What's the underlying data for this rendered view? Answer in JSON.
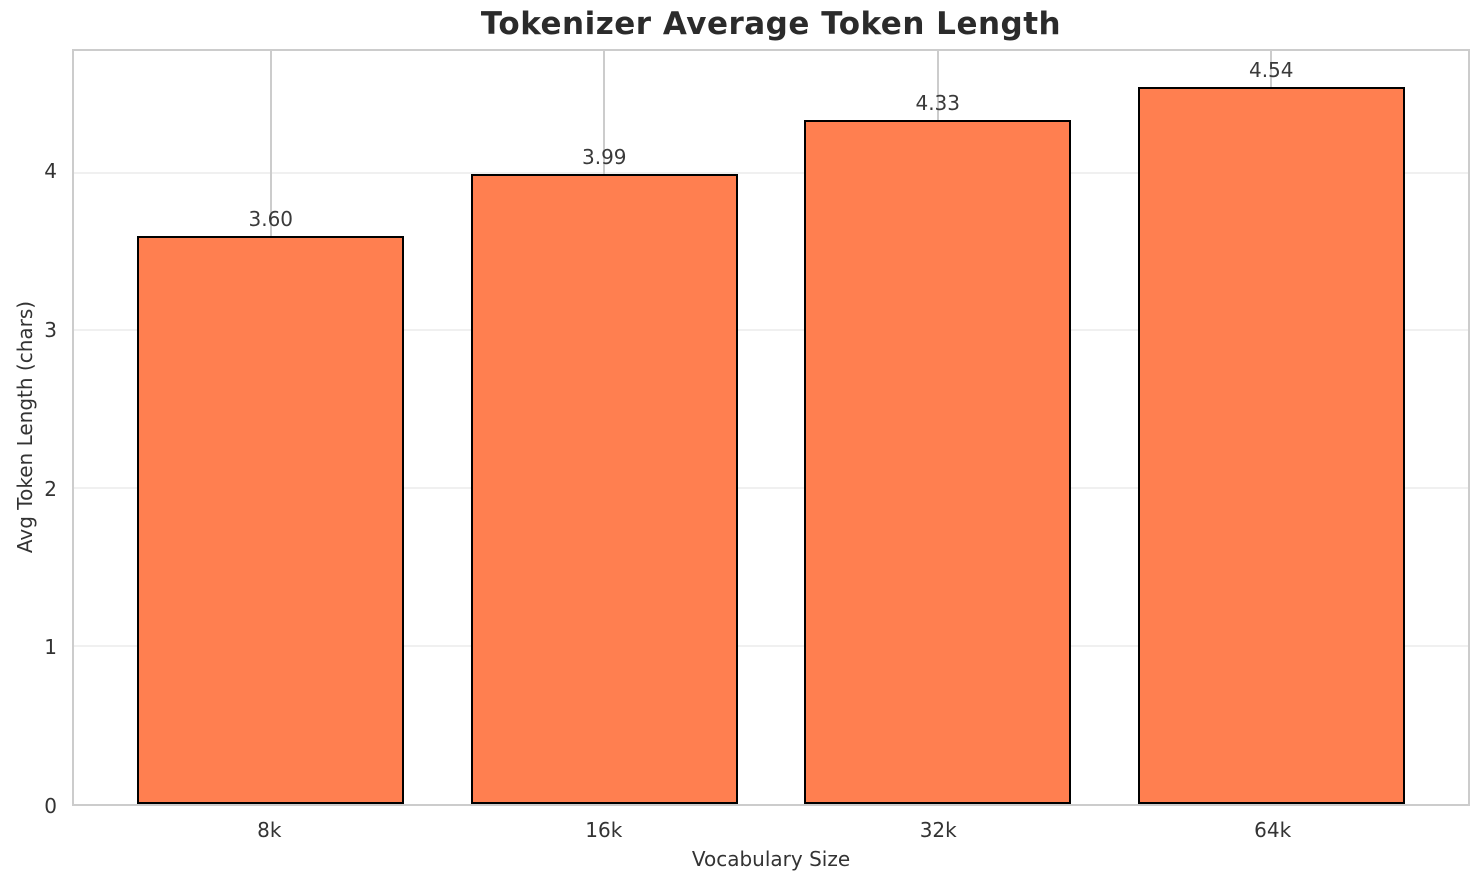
{
  "chart_data": {
    "type": "bar",
    "title": "Tokenizer Average Token Length",
    "xlabel": "Vocabulary Size",
    "ylabel": "Avg Token Length (chars)",
    "categories": [
      "8k",
      "16k",
      "32k",
      "64k"
    ],
    "values": [
      3.6,
      3.99,
      4.33,
      4.54
    ],
    "value_labels": [
      "3.60",
      "3.99",
      "4.33",
      "4.54"
    ],
    "yticks": [
      0,
      1,
      2,
      3,
      4
    ],
    "ytick_labels": [
      "0",
      "1",
      "2",
      "3",
      "4"
    ],
    "ylim": [
      0,
      4.77
    ],
    "bar_width_fraction": 0.8,
    "x_edge_margin": 0.59,
    "grid": "both",
    "legend": "none",
    "colors": {
      "bar_fill": "#FF7F50",
      "bar_edge": "#000000",
      "vertical_grid": "#cccccc",
      "horizontal_grid": "#f0f0f0",
      "spine": "#cccccc",
      "text": "#333333"
    }
  }
}
